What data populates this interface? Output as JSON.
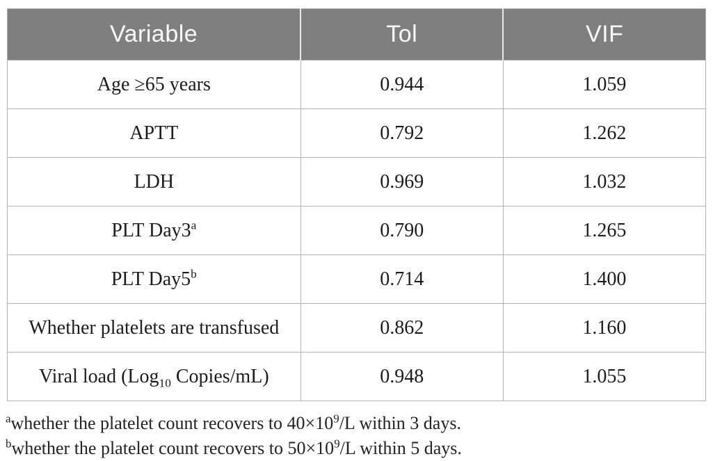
{
  "colors": {
    "header_bg": "#7f7f7f",
    "header_text": "#fafafa",
    "grid_border": "#b3b3b3",
    "body_text": "#1c1c1c"
  },
  "table": {
    "columns": [
      "Variable",
      "Tol",
      "VIF"
    ],
    "rows": [
      {
        "variable": {
          "pre": "Age ≥65 years",
          "sub": "",
          "sup": "",
          "post": ""
        },
        "tol": "0.944",
        "vif": "1.059"
      },
      {
        "variable": {
          "pre": "APTT",
          "sub": "",
          "sup": "",
          "post": ""
        },
        "tol": "0.792",
        "vif": "1.262"
      },
      {
        "variable": {
          "pre": "LDH",
          "sub": "",
          "sup": "",
          "post": ""
        },
        "tol": "0.969",
        "vif": "1.032"
      },
      {
        "variable": {
          "pre": "PLT Day3",
          "sub": "",
          "sup": "a",
          "post": ""
        },
        "tol": "0.790",
        "vif": "1.265"
      },
      {
        "variable": {
          "pre": "PLT Day5",
          "sub": "",
          "sup": "b",
          "post": ""
        },
        "tol": "0.714",
        "vif": "1.400"
      },
      {
        "variable": {
          "pre": "Whether platelets are transfused",
          "sub": "",
          "sup": "",
          "post": ""
        },
        "tol": "0.862",
        "vif": "1.160"
      },
      {
        "variable": {
          "pre": "Viral load (Log",
          "sub": "10",
          "sup": "",
          "post": " Copies/mL)"
        },
        "tol": "0.948",
        "vif": "1.055"
      }
    ]
  },
  "footnotes": [
    {
      "marker": "a",
      "text1": "whether the platelet count recovers to 40×10",
      "exp": "9",
      "text2": "/L within 3 days."
    },
    {
      "marker": "b",
      "text1": "whether the platelet count recovers to 50×10",
      "exp": "9",
      "text2": "/L within 5 days."
    }
  ]
}
